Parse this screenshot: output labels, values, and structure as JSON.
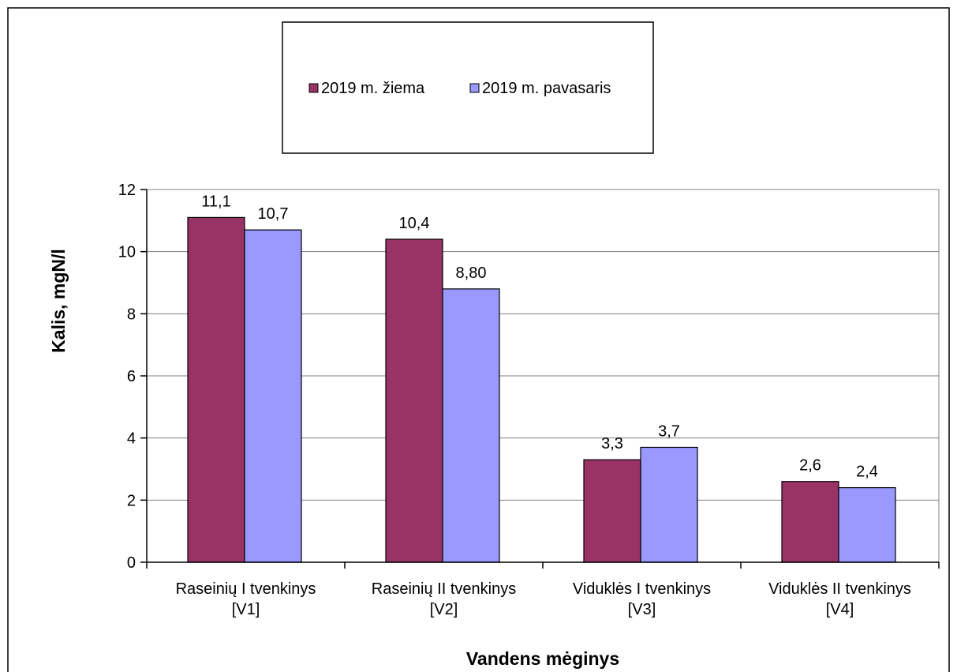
{
  "chart_data": {
    "type": "bar",
    "categories": [
      [
        "Raseinių I tvenkinys",
        "[V1]"
      ],
      [
        "Raseinių II tvenkinys",
        "[V2]"
      ],
      [
        "Viduklės I tvenkinys",
        "[V3]"
      ],
      [
        "Viduklės II tvenkinys",
        "[V4]"
      ]
    ],
    "series": [
      {
        "name": "2019 m. žiema",
        "color": "#993366",
        "values": [
          11.1,
          10.4,
          3.3,
          2.6
        ],
        "labels": [
          "11,1",
          "10,4",
          "3,3",
          "2,6"
        ]
      },
      {
        "name": "2019 m. pavasaris",
        "color": "#9999ff",
        "values": [
          10.7,
          8.8,
          3.7,
          2.4
        ],
        "labels": [
          "10,7",
          "8,80",
          "3,7",
          "2,4"
        ]
      }
    ],
    "title": "",
    "xlabel": "Vandens mėginys",
    "ylabel": "Kalis, mgN/l",
    "ylim": [
      0,
      12
    ],
    "yticks": [
      0,
      2,
      4,
      6,
      8,
      10,
      12
    ],
    "grid": true,
    "legend": "top-center"
  }
}
